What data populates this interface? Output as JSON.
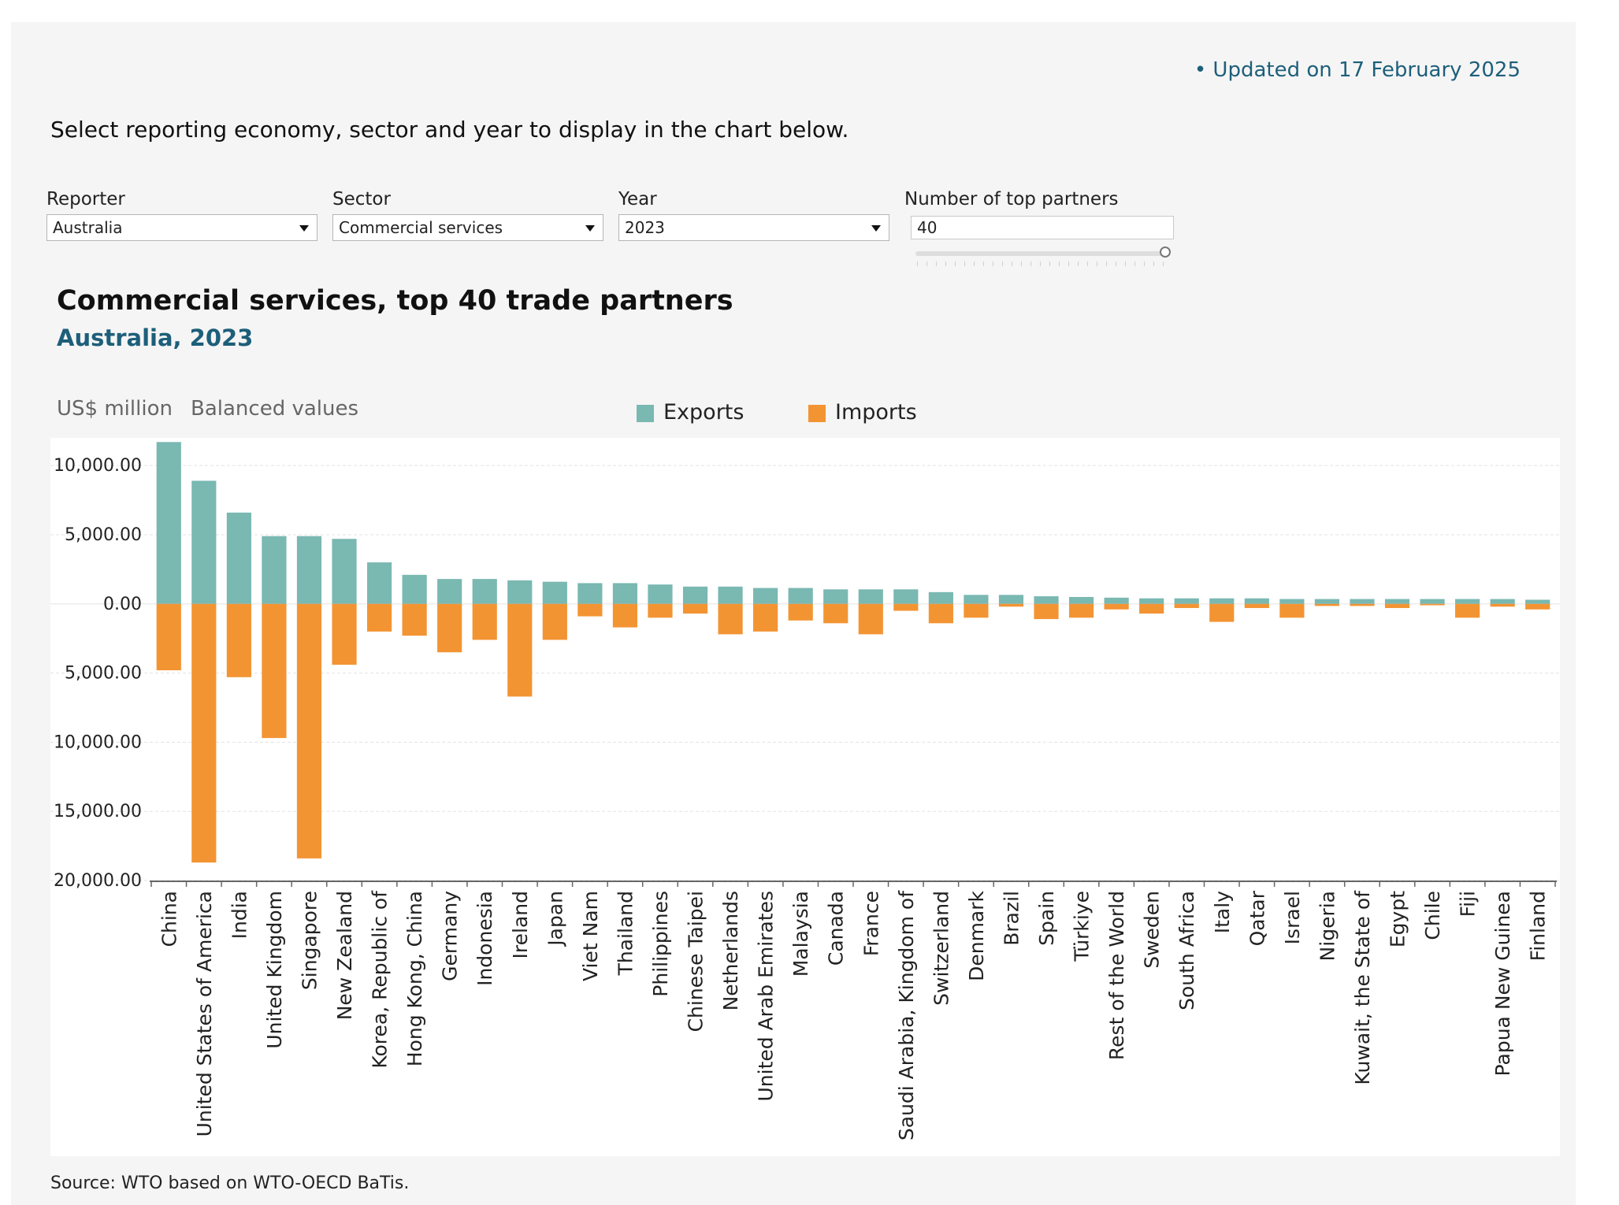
{
  "header": {
    "updated": "• Updated on 17 February 2025",
    "instruction": "Select reporting economy, sector and year to display in the chart below."
  },
  "controls": {
    "reporter": {
      "label": "Reporter",
      "value": "Australia"
    },
    "sector": {
      "label": "Sector",
      "value": "Commercial services"
    },
    "year": {
      "label": "Year",
      "value": "2023"
    },
    "partners": {
      "label": "Number of top partners",
      "value": "40",
      "slider_fraction": 1.0
    }
  },
  "chart_meta": {
    "unit": "US$ million",
    "mode": "Balanced values"
  },
  "source": "Source: WTO based on WTO-OECD BaTis.",
  "colors": {
    "exports": "#7ab8b2",
    "imports": "#f39433",
    "gridline": "#e3e3e3",
    "axis": "#666666"
  },
  "chart_data": {
    "type": "bar",
    "title": "Commercial services, top 40 trade partners",
    "subtitle": "Australia, 2023",
    "legend": [
      "Exports",
      "Imports"
    ],
    "legend_position": "top",
    "grid": true,
    "ylim": [
      -20000,
      12000
    ],
    "yticks": [
      10000,
      5000,
      0,
      -5000,
      -10000,
      -15000,
      -20000
    ],
    "ytick_labels": [
      "10,000.00",
      "5,000.00",
      "0.00",
      "5,000.00",
      "10,000.00",
      "15,000.00",
      "20,000.00"
    ],
    "categories": [
      "China",
      "United States of America",
      "India",
      "United Kingdom",
      "Singapore",
      "New Zealand",
      "Korea, Republic of",
      "Hong Kong, China",
      "Germany",
      "Indonesia",
      "Ireland",
      "Japan",
      "Viet Nam",
      "Thailand",
      "Philippines",
      "Chinese Taipei",
      "Netherlands",
      "United Arab Emirates",
      "Malaysia",
      "Canada",
      "France",
      "Saudi Arabia, Kingdom of",
      "Switzerland",
      "Denmark",
      "Brazil",
      "Spain",
      "Türkiye",
      "Rest of the World",
      "Sweden",
      "South Africa",
      "Italy",
      "Qatar",
      "Israel",
      "Nigeria",
      "Kuwait, the State of",
      "Egypt",
      "Chile",
      "Fiji",
      "Papua New Guinea",
      "Finland"
    ],
    "series": [
      {
        "name": "Exports",
        "values": [
          11700,
          8900,
          6600,
          4900,
          4900,
          4700,
          3000,
          2100,
          1800,
          1800,
          1700,
          1600,
          1500,
          1500,
          1400,
          1250,
          1250,
          1150,
          1150,
          1050,
          1050,
          1050,
          850,
          650,
          650,
          550,
          500,
          450,
          400,
          400,
          400,
          400,
          350,
          350,
          350,
          350,
          350,
          350,
          350,
          300
        ]
      },
      {
        "name": "Imports",
        "values": [
          -4800,
          -18700,
          -5300,
          -9700,
          -18400,
          -4400,
          -2000,
          -2300,
          -3500,
          -2600,
          -6700,
          -2600,
          -900,
          -1700,
          -1000,
          -700,
          -2200,
          -2000,
          -1200,
          -1400,
          -2200,
          -500,
          -1400,
          -1000,
          -200,
          -1100,
          -1000,
          -400,
          -700,
          -300,
          -1300,
          -300,
          -1000,
          -150,
          -150,
          -300,
          -100,
          -1000,
          -200,
          -400
        ]
      }
    ]
  }
}
